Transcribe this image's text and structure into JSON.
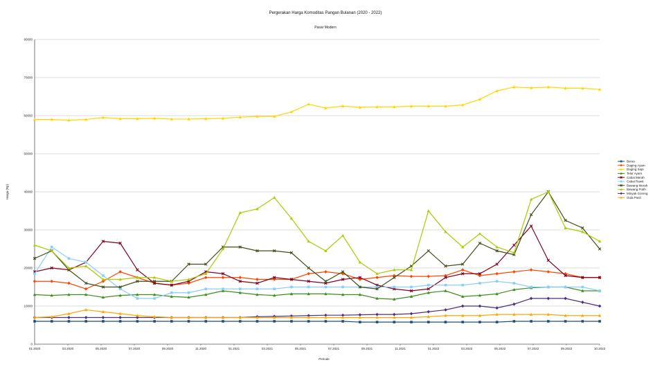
{
  "chart_data": {
    "type": "line",
    "title": "Pergerakan Harga Komoditas Pangan Bulanan (2020 - 2022)",
    "subtitle": "Pasar Modern",
    "xlabel": "Periode",
    "ylabel": "Harga (Rp)",
    "ylim": [
      0,
      80000
    ],
    "yticks": [
      0,
      10000,
      20000,
      30000,
      40000,
      50000,
      60000,
      70000,
      80000
    ],
    "ytick_labels": [
      "0",
      "10000",
      "20000",
      "30000",
      "40000",
      "50000",
      "60000",
      "70000",
      "80000"
    ],
    "grid": true,
    "legend_position": "right",
    "categories": [
      "01-2020",
      "02-2020",
      "03-2020",
      "04-2020",
      "05-2020",
      "06-2020",
      "07-2020",
      "08-2020",
      "09-2020",
      "10-2020",
      "11-2020",
      "12-2020",
      "01-2021",
      "02-2021",
      "03-2021",
      "04-2021",
      "05-2021",
      "06-2021",
      "07-2021",
      "08-2021",
      "09-2021",
      "10-2021",
      "11-2021",
      "12-2021",
      "01-2022",
      "02-2022",
      "03-2022",
      "04-2022",
      "05-2022",
      "06-2022",
      "07-2022",
      "08-2022",
      "09-2022",
      "10-2022"
    ],
    "xtick_labels": [
      "01.2020",
      "03.2020",
      "05.2020",
      "07.2020",
      "09.2020",
      "11.2020",
      "01.2021",
      "03.2021",
      "05.2021",
      "07.2021",
      "09.2021",
      "11.2021",
      "01.2022",
      "03.2022",
      "05.2022",
      "07.2022",
      "09.2022",
      "10.2022"
    ],
    "series": [
      {
        "name": "Beras",
        "color": "#1f4e79",
        "marker": "square",
        "values": [
          6000,
          6000,
          6000,
          6000,
          6000,
          6000,
          6000,
          6000,
          6000,
          6000,
          6000,
          6000,
          6000,
          6000,
          6000,
          6000,
          6000,
          6000,
          6000,
          5800,
          5800,
          5800,
          5800,
          5800,
          5800,
          5800,
          5800,
          5800,
          6000,
          6000,
          6000,
          6000,
          6000,
          6000
        ]
      },
      {
        "name": "Daging Ayam",
        "color": "#ff4500",
        "marker": "diamond",
        "values": [
          16500,
          16500,
          16000,
          14500,
          16500,
          19000,
          17500,
          16000,
          15500,
          16000,
          17500,
          17500,
          17500,
          17000,
          17000,
          17000,
          18500,
          19000,
          18500,
          17000,
          17500,
          18000,
          17800,
          17800,
          18000,
          19500,
          18000,
          18500,
          19000,
          19500,
          19000,
          18500,
          17500,
          17500
        ]
      },
      {
        "name": "Daging Sapi",
        "color": "#ffd700",
        "marker": "triangle",
        "values": [
          59000,
          59000,
          58800,
          59000,
          59500,
          59200,
          59200,
          59300,
          59100,
          59100,
          59200,
          59300,
          59600,
          59800,
          59800,
          61000,
          63000,
          62000,
          62500,
          62200,
          62300,
          62300,
          62500,
          62500,
          62500,
          62800,
          64300,
          66500,
          67500,
          67300,
          67500,
          67200,
          67200,
          66900
        ]
      },
      {
        "name": "Telur Ayam",
        "color": "#3a8f1a",
        "marker": "triangle",
        "values": [
          13000,
          12800,
          13000,
          13000,
          12300,
          12800,
          13000,
          13000,
          12500,
          12300,
          13000,
          14000,
          13500,
          13000,
          12800,
          13200,
          13200,
          13200,
          13000,
          13000,
          12000,
          11800,
          12500,
          13500,
          14000,
          12500,
          12800,
          13200,
          14300,
          14800,
          15000,
          15000,
          14000,
          14000
        ]
      },
      {
        "name": "Cabai Merah",
        "color": "#800020",
        "marker": "x",
        "values": [
          19000,
          20000,
          19500,
          21500,
          27000,
          26500,
          19500,
          16000,
          15500,
          16500,
          19000,
          18500,
          16500,
          16000,
          17500,
          17000,
          16500,
          16000,
          17000,
          17500,
          15500,
          14500,
          14000,
          14500,
          17500,
          18500,
          18500,
          21000,
          26000,
          31000,
          22000,
          18000,
          17500,
          17500
        ]
      },
      {
        "name": "Cabai Rawit",
        "color": "#87cefa",
        "marker": "square",
        "values": [
          18500,
          25500,
          22500,
          21500,
          18000,
          14500,
          12000,
          12000,
          13500,
          13500,
          14500,
          14500,
          14500,
          14500,
          14500,
          15000,
          15000,
          15000,
          15000,
          15000,
          15000,
          15000,
          15000,
          15500,
          15500,
          15500,
          16000,
          16500,
          16000,
          15000,
          15000,
          15000,
          15000,
          14000
        ]
      },
      {
        "name": "Bawang Merah",
        "color": "#3d4e17",
        "marker": "x",
        "values": [
          22500,
          24500,
          19500,
          16000,
          15000,
          15000,
          16500,
          16500,
          16500,
          21000,
          21000,
          25500,
          25500,
          24500,
          24500,
          24000,
          20000,
          16500,
          19000,
          15000,
          14500,
          17500,
          20500,
          24500,
          20500,
          21000,
          26500,
          24500,
          23500,
          34000,
          40000,
          32500,
          30500,
          25000
        ]
      },
      {
        "name": "Bawang Putih",
        "color": "#b0c800",
        "marker": "triangle",
        "values": [
          26000,
          24500,
          20000,
          20500,
          17000,
          17000,
          17500,
          17500,
          16500,
          17000,
          18500,
          25000,
          34500,
          35500,
          38500,
          33000,
          27000,
          24500,
          28500,
          21500,
          18500,
          19500,
          19500,
          35000,
          29500,
          25500,
          29000,
          25500,
          24000,
          38000,
          40000,
          30500,
          29500,
          27000
        ]
      },
      {
        "name": "Minyak Goreng",
        "color": "#4b2e83",
        "marker": "diamond",
        "values": [
          7000,
          7000,
          7000,
          7000,
          7000,
          7000,
          7000,
          7000,
          7000,
          7000,
          7000,
          7000,
          7000,
          7200,
          7300,
          7400,
          7500,
          7600,
          7600,
          7700,
          7800,
          7800,
          8000,
          8500,
          9000,
          10000,
          10000,
          9500,
          10500,
          12000,
          12000,
          12000,
          11000,
          10000
        ]
      },
      {
        "name": "Gula Pasir",
        "color": "#ffa500",
        "marker": "triangle",
        "values": [
          7000,
          7200,
          8000,
          9000,
          8500,
          8000,
          7500,
          7200,
          7000,
          7000,
          7000,
          7000,
          7000,
          7000,
          7000,
          7000,
          7000,
          7000,
          7000,
          7000,
          7000,
          7000,
          7000,
          7200,
          7500,
          7500,
          7500,
          7800,
          7800,
          7800,
          7800,
          7500,
          7500,
          7500
        ]
      }
    ]
  }
}
